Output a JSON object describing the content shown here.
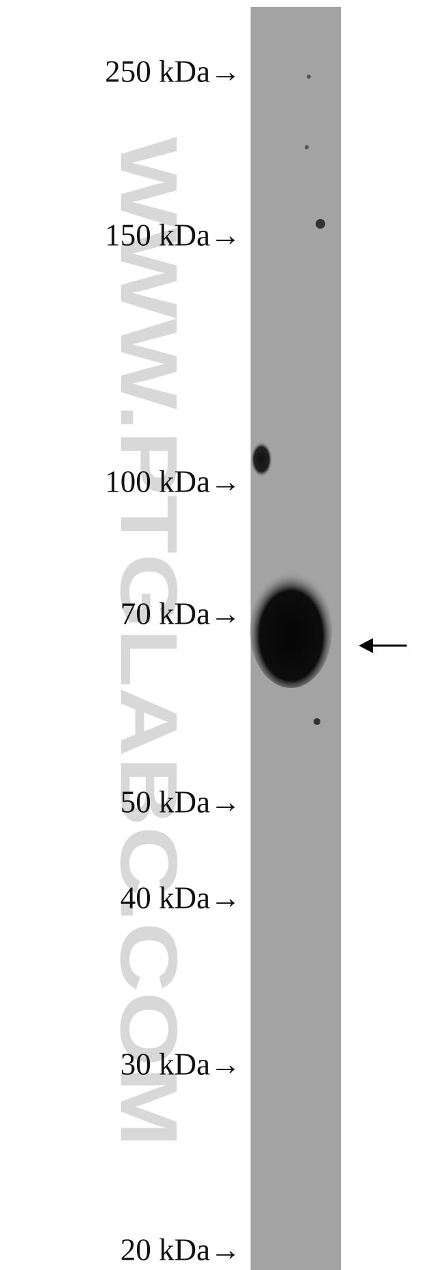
{
  "markers": [
    "250 kDa→",
    "150 kDa→",
    "100 kDa→",
    "70 kDa→",
    "50 kDa→",
    "40 kDa→",
    "30 kDa→",
    "20 kDa→"
  ],
  "watermark": "WWW.PTGLABC.COM"
}
